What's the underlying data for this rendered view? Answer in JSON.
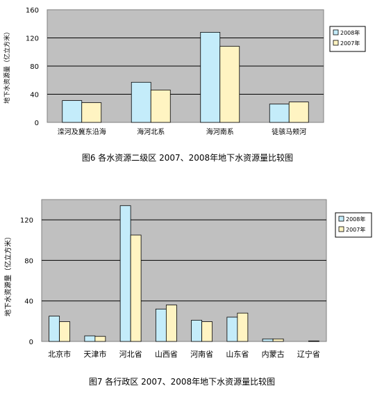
{
  "chart_data": [
    {
      "type": "bar",
      "title": "图6  各水资源二级区 2007、2008年地下水资源量比较图",
      "ylabel": "地下水资源量（亿立方米）",
      "xlabel": "",
      "categories": [
        "滦河及冀东沿海",
        "海河北系",
        "海河南系",
        "徒骇马颊河"
      ],
      "series": [
        {
          "name": "2008年",
          "values": [
            31,
            57,
            128,
            26
          ],
          "color": "#c4ecfa"
        },
        {
          "name": "2007年",
          "values": [
            28,
            46,
            108,
            29
          ],
          "color": "#fff4c2"
        }
      ],
      "ylim": [
        0,
        160
      ],
      "yticks": [
        0,
        40,
        80,
        120,
        160
      ],
      "grid": true,
      "legend": "right"
    },
    {
      "type": "bar",
      "title": "图7  各行政区 2007、2008年地下水资源量比较图",
      "ylabel": "地下水资源量（亿立方米）",
      "xlabel": "",
      "categories": [
        "北京市",
        "天津市",
        "河北省",
        "山西省",
        "河南省",
        "山东省",
        "内蒙古",
        "辽宁省"
      ],
      "series": [
        {
          "name": "2008年",
          "values": [
            25,
            5.5,
            134,
            32,
            21,
            24,
            2.5,
            0
          ],
          "color": "#c4ecfa"
        },
        {
          "name": "2007年",
          "values": [
            19.5,
            5,
            105,
            36,
            19.5,
            28,
            2.5,
            0.5
          ],
          "color": "#fff4c2"
        }
      ],
      "ylim": [
        0,
        140
      ],
      "yticks": [
        0,
        40,
        80,
        120
      ],
      "grid": true,
      "legend": "right"
    }
  ]
}
